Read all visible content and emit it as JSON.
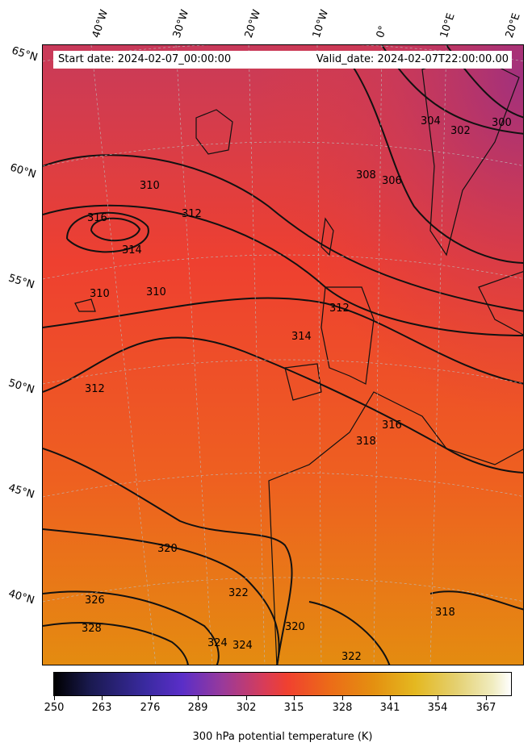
{
  "map": {
    "start_date": "Start date: 2024-02-07_00:00:00",
    "valid_date": "Valid_date: 2024-02-07T22:00:00.00",
    "longitude_labels": [
      "40°W",
      "30°W",
      "20°W",
      "10°W",
      "0°",
      "10°E",
      "20°E"
    ],
    "latitude_labels": [
      "65°N",
      "60°N",
      "55°N",
      "50°N",
      "45°N",
      "40°N"
    ],
    "contour_labels": [
      "316",
      "314",
      "312",
      "310",
      "310",
      "310",
      "312",
      "314",
      "312",
      "316",
      "318",
      "320",
      "322",
      "326",
      "328",
      "324",
      "324",
      "320",
      "322",
      "318",
      "308",
      "306",
      "304",
      "302",
      "300"
    ],
    "colormap": "CMRmap",
    "field_color_range": [
      "#a8337a",
      "#f04030",
      "#e88010"
    ]
  },
  "colorbar": {
    "title": "300 hPa potential temperature (K)",
    "ticks": [
      "250",
      "263",
      "276",
      "289",
      "302",
      "315",
      "328",
      "341",
      "354",
      "367"
    ],
    "range": [
      250,
      377
    ]
  }
}
